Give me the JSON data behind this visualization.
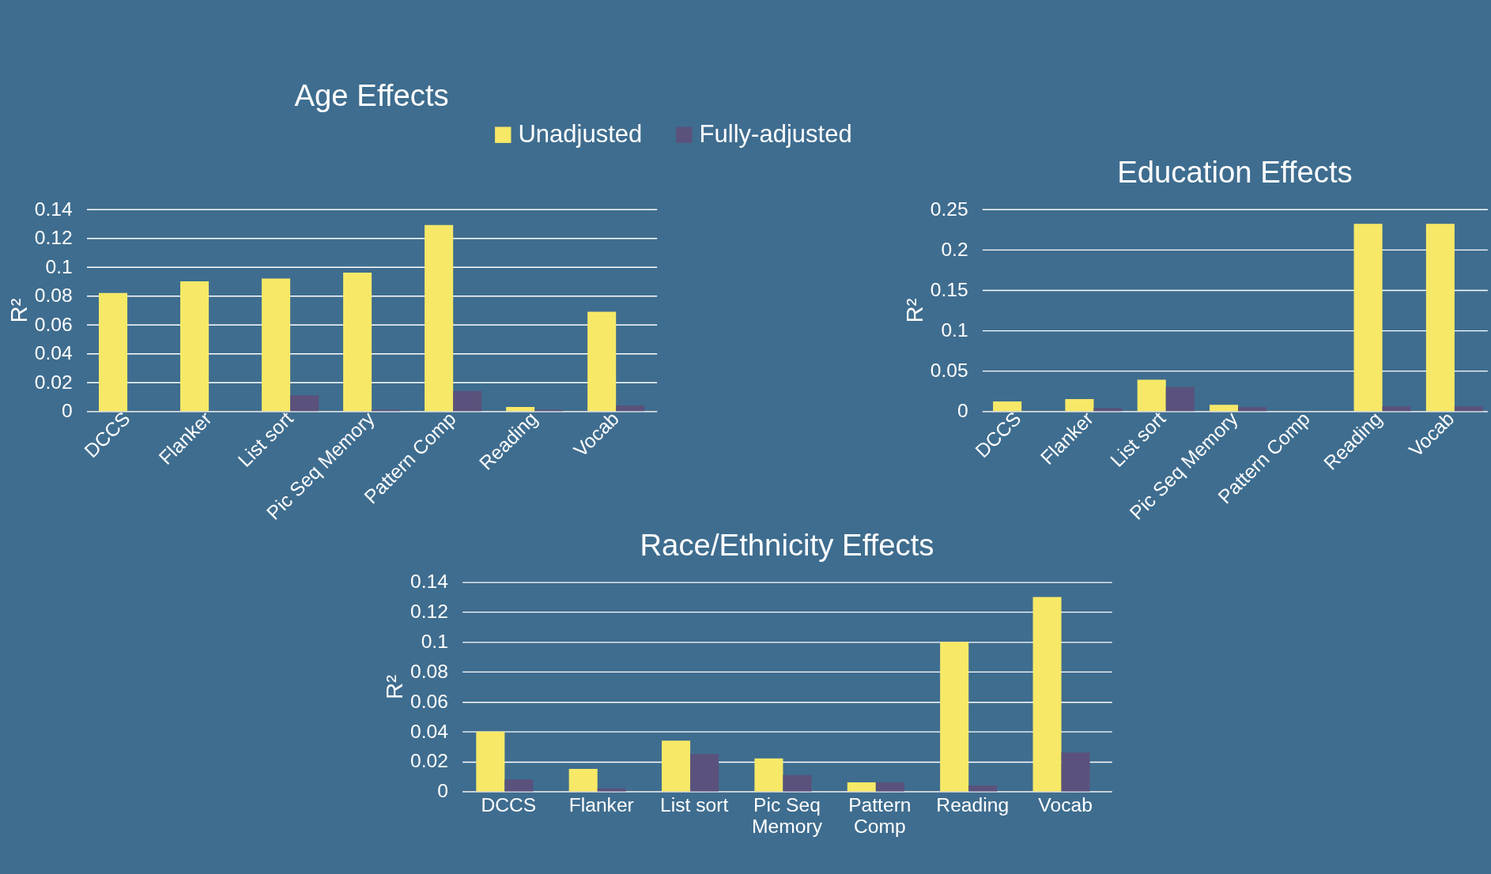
{
  "chart_data": [
    {
      "type": "bar",
      "title": "Age Effects",
      "ylabel": "R²",
      "categories": [
        "DCCS",
        "Flanker",
        "List sort",
        "Pic Seq Memory",
        "Pattern Comp",
        "Reading",
        "Vocab"
      ],
      "series": [
        {
          "name": "Unadjusted",
          "color": "#f7e967",
          "values": [
            0.082,
            0.09,
            0.092,
            0.096,
            0.129,
            0.003,
            0.069
          ]
        },
        {
          "name": "Fully-adjusted",
          "color": "#5a527c",
          "values": [
            0,
            0,
            0.011,
            0.001,
            0.014,
            0.001,
            0.004
          ]
        }
      ],
      "ylim": [
        0,
        0.14
      ],
      "yticks": [
        0,
        0.02,
        0.04,
        0.06,
        0.08,
        0.1,
        0.12,
        0.14
      ],
      "grid": "y",
      "legend": "top"
    },
    {
      "type": "bar",
      "title": "Education Effects",
      "ylabel": "R²",
      "categories": [
        "DCCS",
        "Flanker",
        "List sort",
        "Pic Seq Memory",
        "Pattern Comp",
        "Reading",
        "Vocab"
      ],
      "series": [
        {
          "name": "Unadjusted",
          "color": "#f7e967",
          "values": [
            0.012,
            0.015,
            0.039,
            0.008,
            0,
            0.232,
            0.232
          ]
        },
        {
          "name": "Fully-adjusted",
          "color": "#5a527c",
          "values": [
            0,
            0.004,
            0.03,
            0.005,
            0,
            0.006,
            0.006
          ]
        }
      ],
      "ylim": [
        0,
        0.25
      ],
      "yticks": [
        0,
        0.05,
        0.1,
        0.15,
        0.2,
        0.25
      ],
      "grid": "y"
    },
    {
      "type": "bar",
      "title": "Race/Ethnicity Effects",
      "ylabel": "R²",
      "categories": [
        "DCCS",
        "Flanker",
        "List sort",
        "Pic Seq Memory",
        "Pattern Comp",
        "Reading",
        "Vocab"
      ],
      "series": [
        {
          "name": "Unadjusted",
          "color": "#f7e967",
          "values": [
            0.04,
            0.015,
            0.034,
            0.022,
            0.006,
            0.1,
            0.13
          ]
        },
        {
          "name": "Fully-adjusted",
          "color": "#5a527c",
          "values": [
            0.008,
            0.002,
            0.025,
            0.011,
            0.006,
            0.004,
            0.026
          ]
        }
      ],
      "ylim": [
        0,
        0.14
      ],
      "yticks": [
        0,
        0.02,
        0.04,
        0.06,
        0.08,
        0.1,
        0.12,
        0.14
      ],
      "grid": "y"
    }
  ]
}
